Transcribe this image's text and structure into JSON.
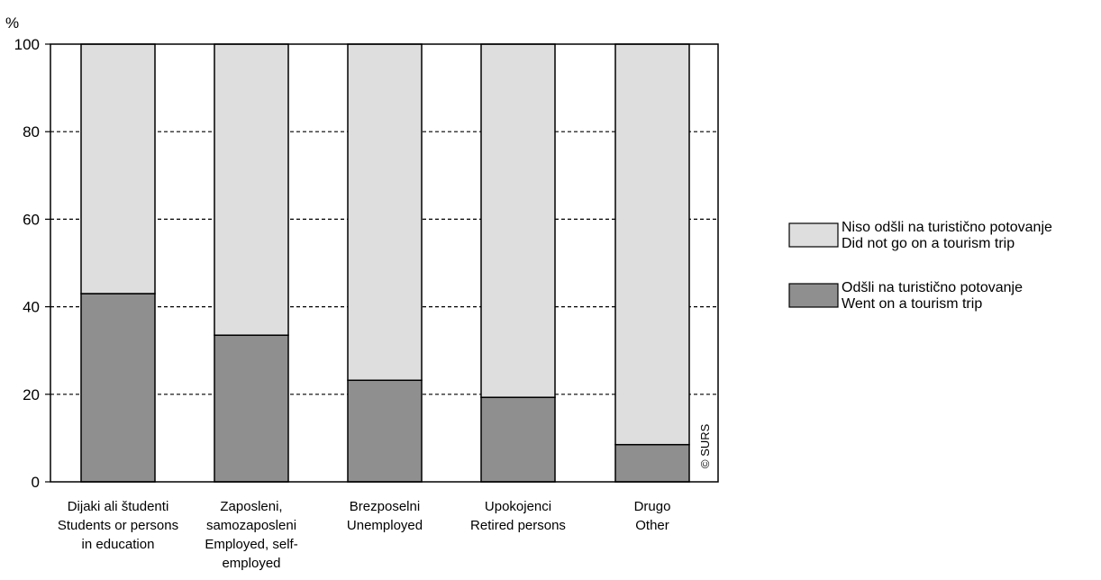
{
  "chart_data": {
    "type": "bar",
    "stacked": true,
    "ylabel": "%",
    "ylim": [
      0,
      100
    ],
    "yticks": [
      0,
      20,
      40,
      60,
      80,
      100
    ],
    "grid": "horizontal dashed",
    "legend_position": "right",
    "categories": [
      [
        "Dijaki ali študenti",
        "Students or persons",
        "in education"
      ],
      [
        "Zaposleni,",
        "samozaposleni",
        "Employed, self-",
        "employed"
      ],
      [
        "Brezposelni",
        "Unemployed"
      ],
      [
        "Upokojenci",
        "Retired persons"
      ],
      [
        "Drugo",
        "Other"
      ]
    ],
    "series": [
      {
        "name_lines": [
          "Odšli na turistično potovanje",
          "Went on a tourism trip"
        ],
        "color": "#8f8f8f",
        "values": [
          43,
          33.5,
          23.2,
          19.3,
          8.5
        ]
      },
      {
        "name_lines": [
          "Niso odšli na turistično potovanje",
          "Did not go on a tourism  trip"
        ],
        "color": "#dedede",
        "values": [
          57,
          66.5,
          76.8,
          80.7,
          91.5
        ]
      }
    ],
    "copyright": "© SURS"
  }
}
